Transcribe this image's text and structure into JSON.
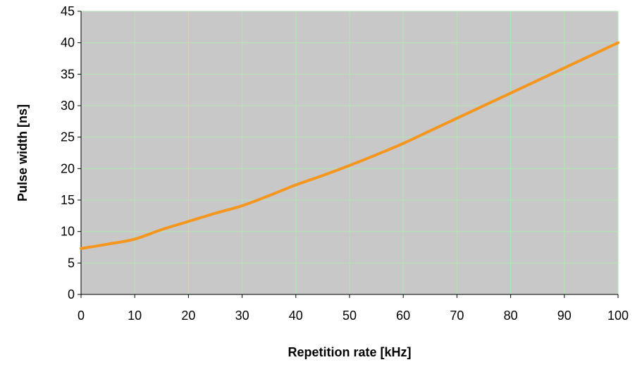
{
  "chart_data": {
    "type": "line",
    "xlabel": "Repetition rate [kHz]",
    "ylabel": "Pulse width [ns]",
    "xlim": [
      0,
      100
    ],
    "ylim": [
      0,
      45
    ],
    "x_ticks": [
      0,
      10,
      20,
      30,
      40,
      50,
      60,
      70,
      80,
      90,
      100
    ],
    "y_ticks": [
      0,
      5,
      10,
      15,
      20,
      25,
      30,
      35,
      40,
      45
    ],
    "grid": true,
    "legend": "none",
    "colors": {
      "plot_background": "#c8c8c8",
      "grid": "#b4e6b4",
      "line": "#f5961e",
      "axis": "#000000"
    },
    "series": [
      {
        "x": [
          0,
          5,
          10,
          15,
          20,
          25,
          30,
          35,
          40,
          45,
          50,
          55,
          60,
          65,
          70,
          75,
          80,
          85,
          90,
          95,
          100
        ],
        "values": [
          7.3,
          8.0,
          8.8,
          10.3,
          11.6,
          12.9,
          14.1,
          15.7,
          17.4,
          18.9,
          20.5,
          22.2,
          24.0,
          26.0,
          28.0,
          30.0,
          32.0,
          34.0,
          36.0,
          38.0,
          40.0
        ]
      }
    ]
  }
}
